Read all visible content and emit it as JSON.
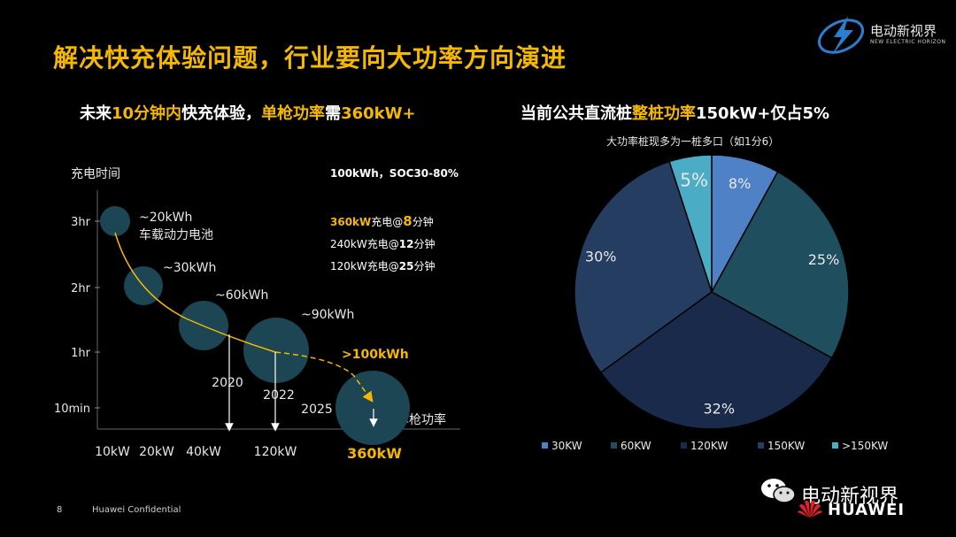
{
  "slide": {
    "title": "解决快充体验问题，行业要向大功率方向演进",
    "page_number": "8",
    "confidential": "Huawei Confidential",
    "logo_cn": "电动新视界",
    "logo_en": "NEW ELECTRIC HORIZON",
    "watermark_cn": "电动新视界",
    "watermark_en": "HUAWEI",
    "colors": {
      "accent": "#f5b800",
      "background": "#000000"
    }
  },
  "left_subtitle": {
    "a": "未来",
    "b": "10分钟内",
    "c": "快充体验，",
    "d": "单枪功率",
    "e": "需",
    "f": "360kW+"
  },
  "right_subtitle": {
    "a": "当前公共直流桩",
    "b": "整桩功率",
    "c": "150kW+仅占5%"
  },
  "pie_note": "大功率桩现多为一桩多口（如1分6）",
  "chart_data": [
    {
      "type": "scatter",
      "ylabel": "充电时间",
      "xlabel": "单枪功率",
      "y_ticks": [
        "3hr",
        "2hr",
        "1hr",
        "10min"
      ],
      "x_ticks": [
        "10kW",
        "20kW",
        "40kW",
        "120kW",
        "360kW"
      ],
      "info": {
        "header": "100kWh，SOC30-80%",
        "lines": [
          {
            "prefix": "360kW充电@",
            "num": "8",
            "suffix": "分钟",
            "highlight": true
          },
          {
            "prefix": "240kW充电@",
            "num": "12",
            "suffix": "分钟",
            "highlight": false
          },
          {
            "prefix": "120kW充电@",
            "num": "25",
            "suffix": "分钟",
            "highlight": false
          }
        ]
      },
      "points": [
        {
          "power": "10kW",
          "time": "3hr",
          "label": "~20kWh",
          "sublabel": "车载动力电池"
        },
        {
          "power": "20kW",
          "time": "2hr",
          "label": "~30kWh"
        },
        {
          "power": "40kW",
          "label": "~60kWh"
        },
        {
          "power": "120kW",
          "time": "1hr",
          "label": "~90kWh"
        },
        {
          "power": "360kW",
          "time": "10min",
          "label": ">100kWh",
          "highlight": true
        }
      ],
      "years": [
        "2020",
        "2022",
        "2025"
      ]
    },
    {
      "type": "pie",
      "slices": [
        {
          "name": "30KW",
          "value": 8,
          "label": "8%",
          "color": "#4f81c7"
        },
        {
          "name": "60KW",
          "value": 25,
          "label": "25%",
          "color": "#1f4e5f"
        },
        {
          "name": "120KW",
          "value": 32,
          "label": "32%",
          "color": "#1a2a4a"
        },
        {
          "name": "150KW",
          "value": 30,
          "label": "30%",
          "color": "#243d61"
        },
        {
          "name": ">150KW",
          "value": 5,
          "label": "5%",
          "color": "#4bacc6"
        }
      ]
    }
  ]
}
